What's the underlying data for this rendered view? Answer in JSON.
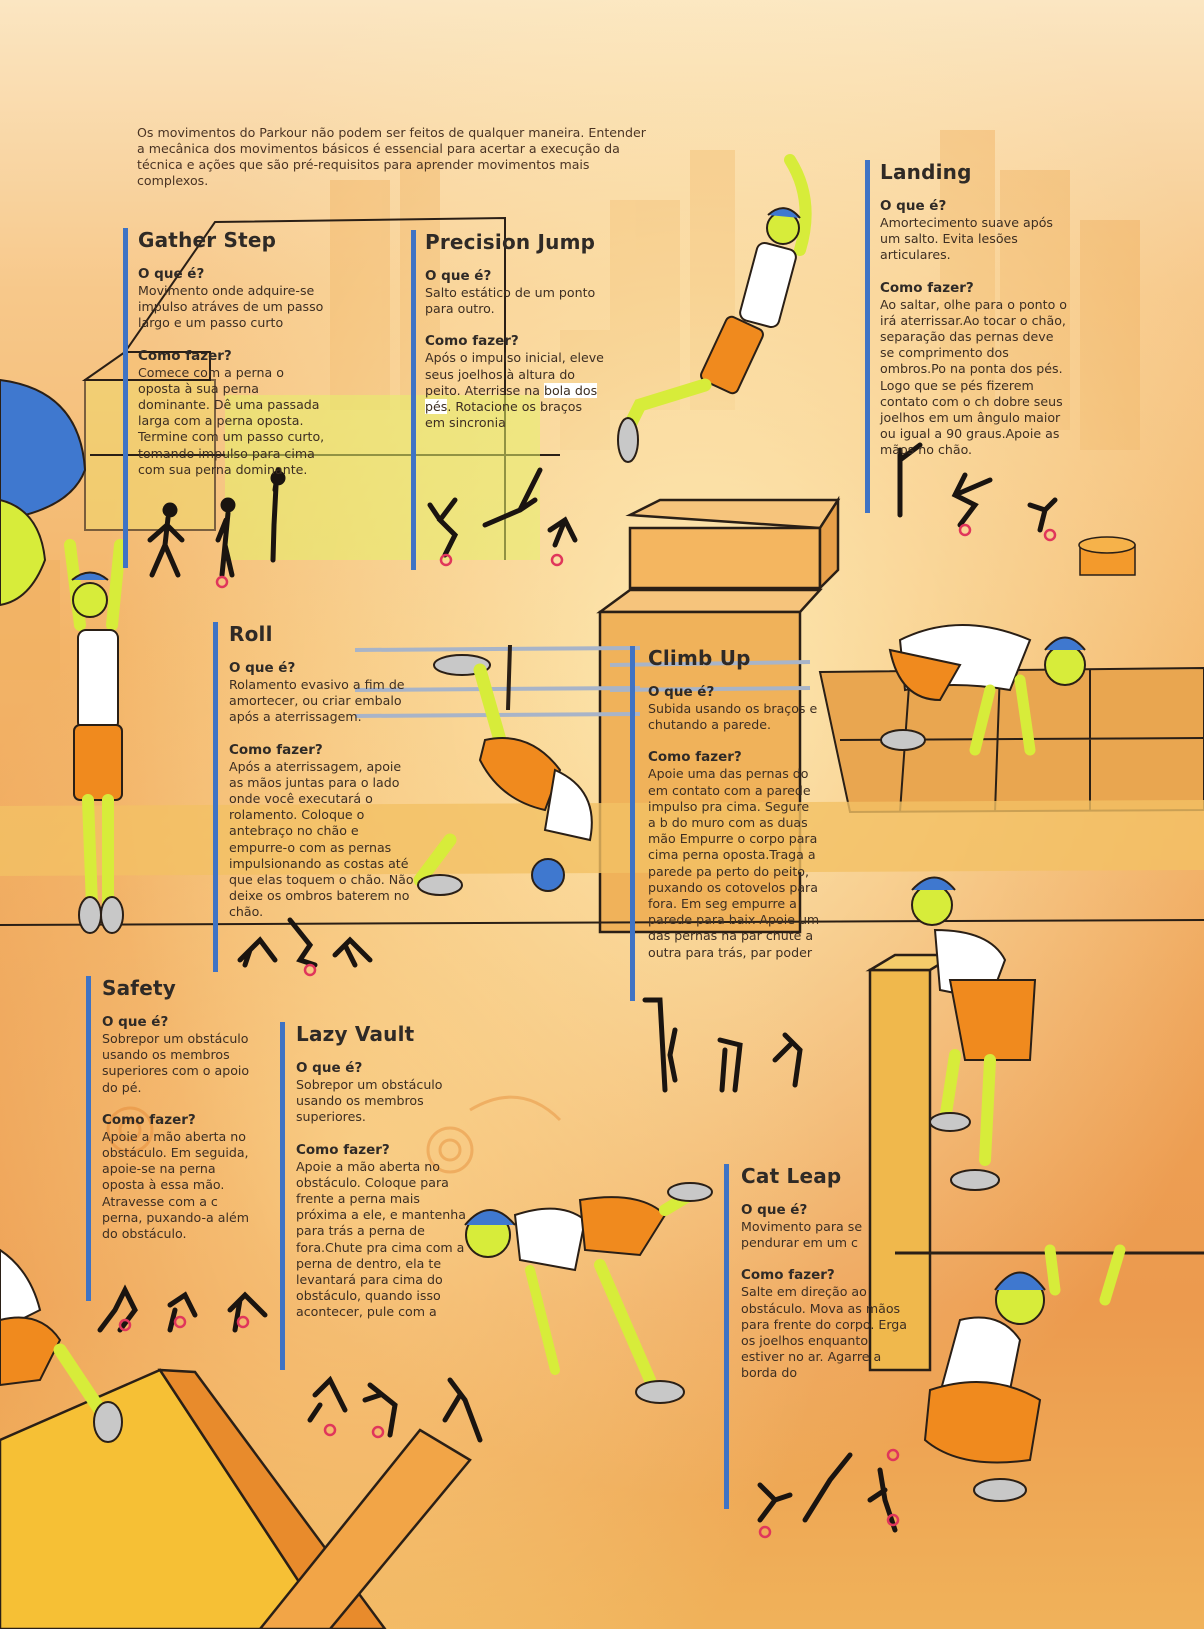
{
  "intro": "Os movimentos do Parkour não podem ser feitos de qualquer maneira. Entender a mecânica dos movimentos básicos é essencial para acertar a execução da técnica e ações que são pré-requisitos para aprender movimentos mais complexos.",
  "colors": {
    "accent_bar": "#3f73c4",
    "skin": "#d7ec3a",
    "shorts": "#f08a1e",
    "cap": "#2f6fc7",
    "marker": "#e0365b"
  },
  "sections": {
    "gather_step": {
      "title": "Gather Step",
      "q1": "O que é?",
      "a1": "Movimento onde adquire-se impulso atráves de um passo largo e um passo curto",
      "q2": "Como fazer?",
      "a2": "Comece com a perna o oposta à sua perna dominante. Dê uma passada larga com a perna oposta. Termine com um passo curto, tomando impulso para cima com sua perna dominante."
    },
    "precision_jump": {
      "title": "Precision Jump",
      "q1": "O que é?",
      "a1": "Salto estático de um ponto para outro.",
      "q2": "Como fazer?",
      "a2a": "Após o impulso inicial, eleve seus joelhos à altura do peito. Aterrisse na ",
      "a2b": "bola dos pés",
      "a2c": ". Rotacione os braços em sincronia"
    },
    "landing": {
      "title": "Landing",
      "q1": "O que é?",
      "a1": "Amortecimento suave após um salto. Evita lesões articulares.",
      "q2": "Como fazer?",
      "a2": "Ao saltar, olhe para o ponto o irá aterrissar.Ao tocar o chão, separação das pernas deve se comprimento dos ombros.Po na ponta dos pés. Logo que se pés fizerem contato com o ch dobre seus joelhos em um ângulo maior ou igual a 90 graus.Apoie as mãos no chão."
    },
    "roll": {
      "title": "Roll",
      "q1": "O que é?",
      "a1": "Rolamento evasivo a fim de amortecer, ou criar embalo após a aterrissagem.",
      "q2": "Como fazer?",
      "a2": "Após a aterrissagem, apoie as mãos juntas para o lado onde você executará o rolamento. Coloque o antebraço no chão e empurre-o com as pernas impulsionando as costas até que elas toquem o chão. Não deixe os ombros baterem no chão."
    },
    "climb_up": {
      "title": "Climb Up",
      "q1": "O que é?",
      "a1": "Subida usando os braços e chutando a parede.",
      "q2": "Como fazer?",
      "a2": "Apoie uma das pernas do em contato com a parede impulso pra cima. Segure a b do muro com as duas mão Empurre o corpo para cima perna oposta.Traga a parede pa perto do peito, puxando os cotovelos para fora. Em seg empurre a parede para baix Apoie um das pernas na par chute a outra para trás, par poder"
    },
    "safety": {
      "title": "Safety",
      "q1": "O que é?",
      "a1": "Sobrepor um obstáculo usando os membros superiores com o apoio do pé.",
      "q2": "Como fazer?",
      "a2": "Apoie a mão aberta no obstáculo. Em seguida, apoie-se na perna oposta à essa mão. Atravesse com a c perna, puxando-a além do obstáculo."
    },
    "lazy_vault": {
      "title": "Lazy Vault",
      "q1": "O que é?",
      "a1": "Sobrepor um obstáculo usando os membros superiores.",
      "q2": "Como fazer?",
      "a2": "Apoie a mão aberta no obstáculo. Coloque para frente a perna mais próxima a ele, e mantenha para trás a perna de fora.Chute pra cima com a perna de dentro, ela te levantará para cima do obstáculo, quando isso acontecer, pule com a"
    },
    "cat_leap": {
      "title": "Cat Leap",
      "q1": "O que é?",
      "a1": "Movimento para se pendurar em um c",
      "q2": "Como fazer?",
      "a2": "Salte em direção ao obstáculo.  Mova as mãos para frente do corpo. Erga os joelhos enquanto estiver no ar. Agarre a borda do"
    }
  }
}
